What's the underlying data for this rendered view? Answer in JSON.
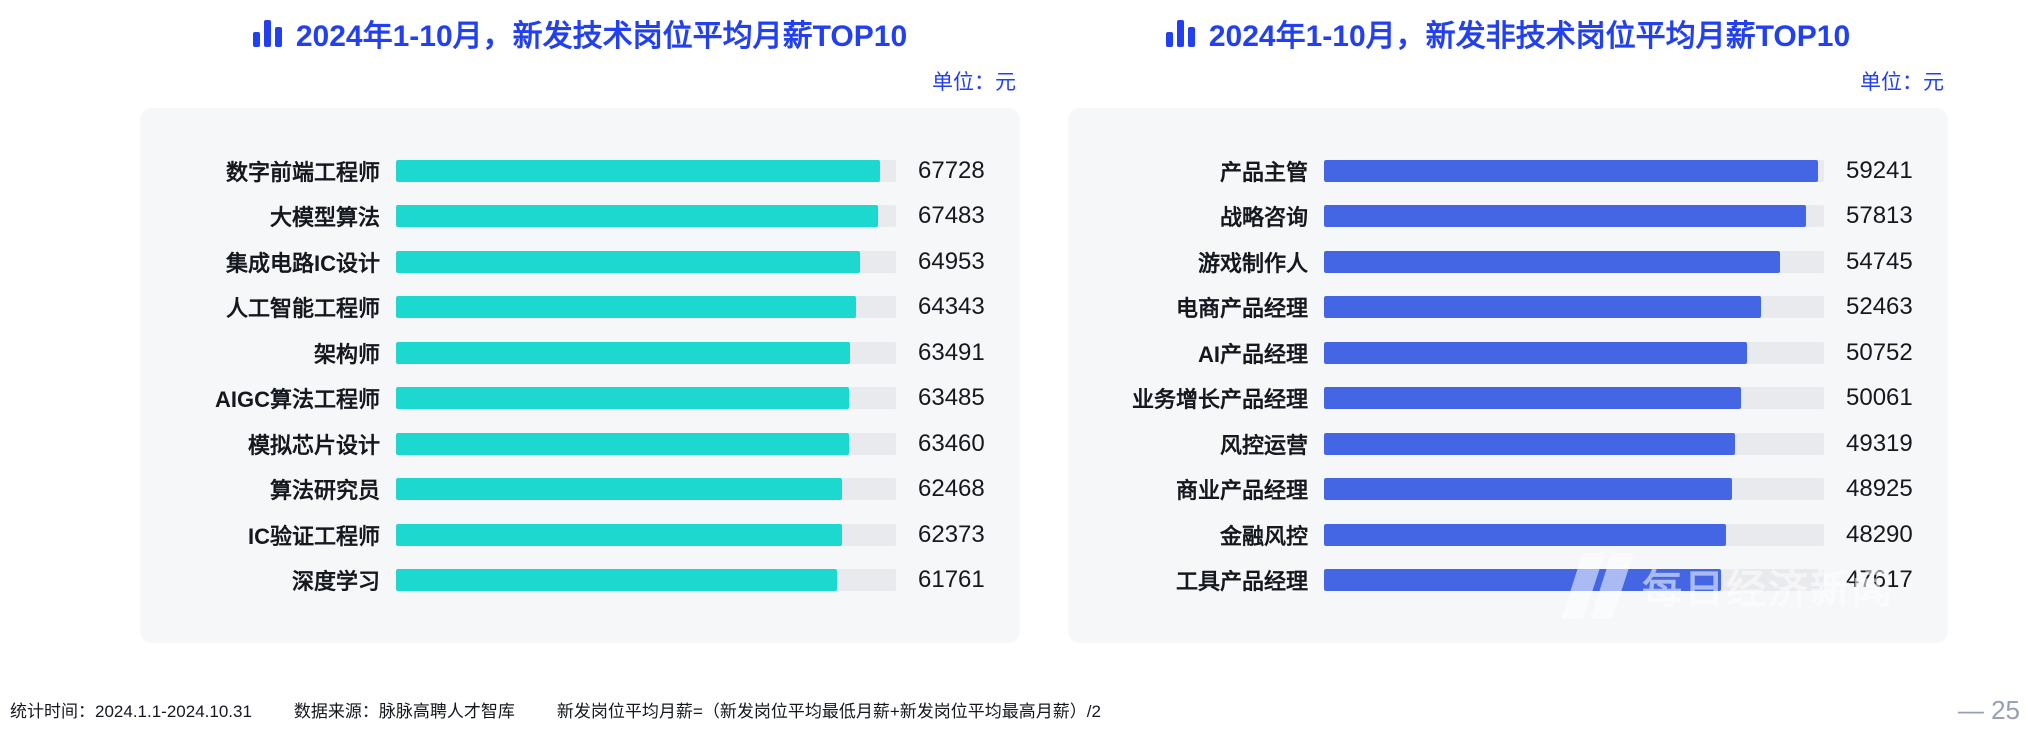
{
  "chart_data": [
    {
      "type": "bar",
      "orientation": "horizontal",
      "title": "2024年1-10月，新发技术岗位平均月薪TOP10",
      "unit_label": "单位：元",
      "bar_color": "#1CD8CE",
      "xlim": [
        0,
        70000
      ],
      "grid": false,
      "legend": "none",
      "categories": [
        "数字前端工程师",
        "大模型算法",
        "集成电路IC设计",
        "人工智能工程师",
        "架构师",
        "AIGC算法工程师",
        "模拟芯片设计",
        "算法研究员",
        "IC验证工程师",
        "深度学习"
      ],
      "values": [
        67728,
        67483,
        64953,
        64343,
        63491,
        63485,
        63460,
        62468,
        62373,
        61761
      ]
    },
    {
      "type": "bar",
      "orientation": "horizontal",
      "title": "2024年1-10月，新发非技术岗位平均月薪TOP10",
      "unit_label": "单位：元",
      "bar_color": "#4466E4",
      "xlim": [
        0,
        60000
      ],
      "grid": false,
      "legend": "none",
      "categories": [
        "产品主管",
        "战略咨询",
        "游戏制作人",
        "电商产品经理",
        "AI产品经理",
        "业务增长产品经理",
        "风控运营",
        "商业产品经理",
        "金融风控",
        "工具产品经理"
      ],
      "values": [
        59241,
        57813,
        54745,
        52463,
        50752,
        50061,
        49319,
        48925,
        48290,
        47617
      ]
    }
  ],
  "colors": {
    "title_blue": "#2340F0",
    "tech_bar": "#1CD8CE",
    "nontech_bar": "#4466E4",
    "card_bg": "#F6F7F9",
    "track": "#E9EAEE"
  },
  "watermark": "每日经济新闻",
  "footer": {
    "stat_time": "统计时间：2024.1.1-2024.10.31",
    "data_source": "数据来源：脉脉高聘人才智库",
    "formula": "新发岗位平均月薪=（新发岗位平均最低月薪+新发岗位平均最高月薪）/2",
    "page_number": "— 25"
  }
}
